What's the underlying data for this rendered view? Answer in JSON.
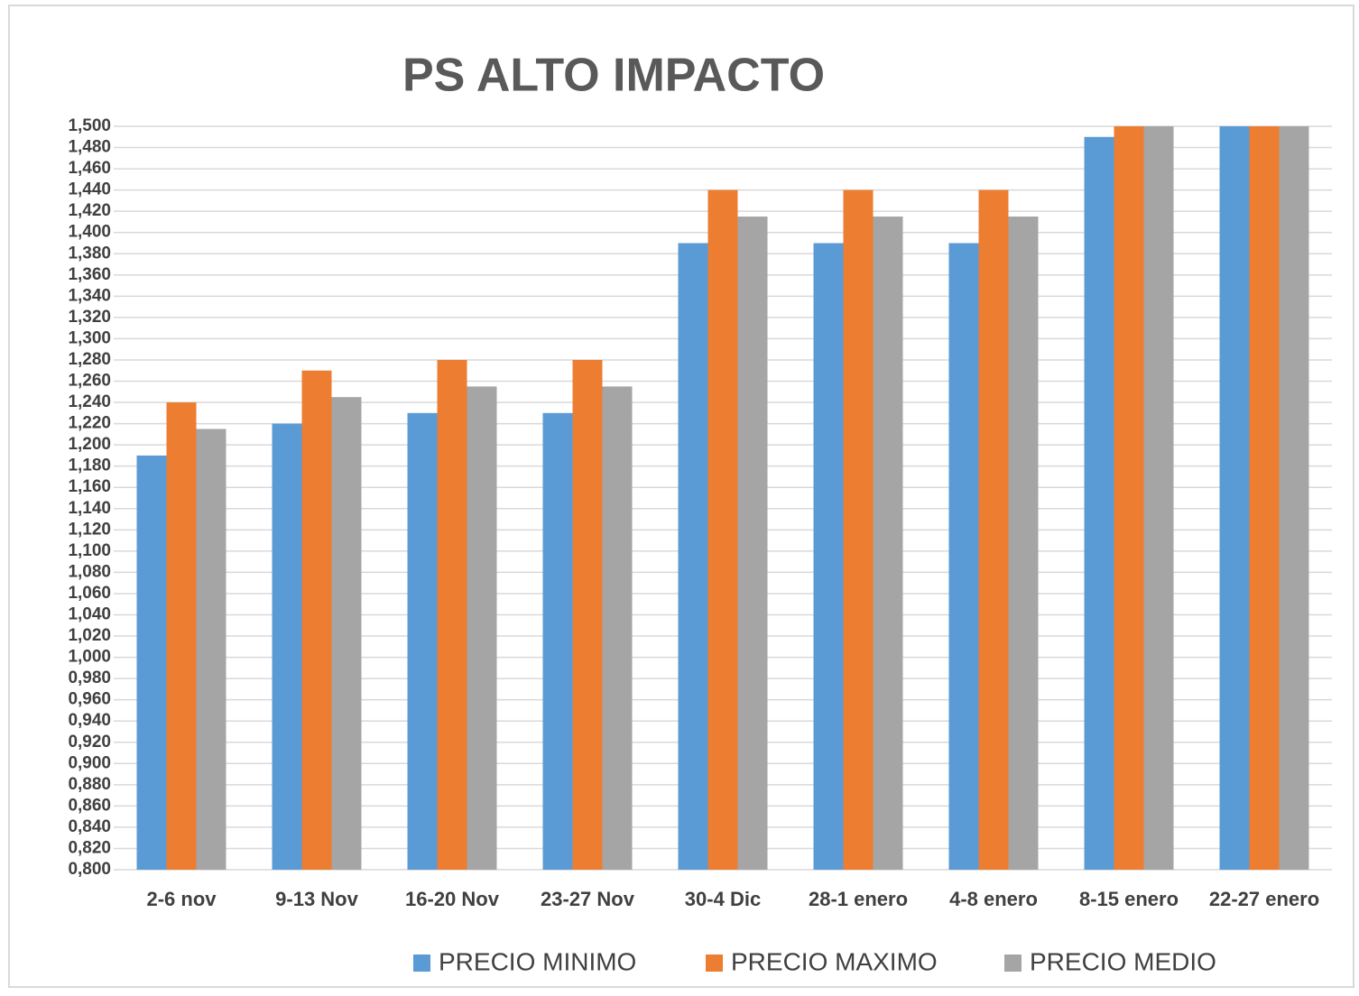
{
  "chart_data": {
    "type": "bar",
    "title": "PS ALTO IMPACTO",
    "categories": [
      "2-6 nov",
      "9-13 Nov",
      "16-20 Nov",
      "23-27 Nov",
      "30-4 Dic",
      "28-1 enero",
      "4-8 enero",
      "8-15 enero",
      "22-27 enero"
    ],
    "series": [
      {
        "name": "PRECIO MINIMO",
        "color": "#5b9bd5",
        "values": [
          1.19,
          1.22,
          1.23,
          1.23,
          1.39,
          1.39,
          1.39,
          1.49,
          1.5
        ]
      },
      {
        "name": "PRECIO MAXIMO",
        "color": "#ed7d31",
        "values": [
          1.24,
          1.27,
          1.28,
          1.28,
          1.44,
          1.44,
          1.44,
          1.5,
          1.5
        ]
      },
      {
        "name": "PRECIO MEDIO",
        "color": "#a5a5a5",
        "values": [
          1.215,
          1.245,
          1.255,
          1.255,
          1.415,
          1.415,
          1.415,
          1.5,
          1.5
        ]
      }
    ],
    "ylim": [
      0.8,
      1.5
    ],
    "yticks": [
      {
        "value": 0.8,
        "label": "0,800"
      },
      {
        "value": 0.82,
        "label": "0,820"
      },
      {
        "value": 0.84,
        "label": "0,840"
      },
      {
        "value": 0.86,
        "label": "0,860"
      },
      {
        "value": 0.88,
        "label": "0,880"
      },
      {
        "value": 0.9,
        "label": "0,900"
      },
      {
        "value": 0.92,
        "label": "0,920"
      },
      {
        "value": 0.94,
        "label": "0,940"
      },
      {
        "value": 0.96,
        "label": "0,960"
      },
      {
        "value": 0.98,
        "label": "0,980"
      },
      {
        "value": 1.0,
        "label": "1,000"
      },
      {
        "value": 1.02,
        "label": "1,020"
      },
      {
        "value": 1.04,
        "label": "1,040"
      },
      {
        "value": 1.06,
        "label": "1,060"
      },
      {
        "value": 1.08,
        "label": "1,080"
      },
      {
        "value": 1.1,
        "label": "1,100"
      },
      {
        "value": 1.12,
        "label": "1,120"
      },
      {
        "value": 1.14,
        "label": "1,140"
      },
      {
        "value": 1.16,
        "label": "1,160"
      },
      {
        "value": 1.18,
        "label": "1,180"
      },
      {
        "value": 1.2,
        "label": "1,200"
      },
      {
        "value": 1.22,
        "label": "1,220"
      },
      {
        "value": 1.24,
        "label": "1,240"
      },
      {
        "value": 1.26,
        "label": "1,260"
      },
      {
        "value": 1.28,
        "label": "1,280"
      },
      {
        "value": 1.3,
        "label": "1,300"
      },
      {
        "value": 1.32,
        "label": "1,320"
      },
      {
        "value": 1.34,
        "label": "1,340"
      },
      {
        "value": 1.36,
        "label": "1,360"
      },
      {
        "value": 1.38,
        "label": "1,380"
      },
      {
        "value": 1.4,
        "label": "1,400"
      },
      {
        "value": 1.42,
        "label": "1,420"
      },
      {
        "value": 1.44,
        "label": "1,440"
      },
      {
        "value": 1.46,
        "label": "1,460"
      },
      {
        "value": 1.48,
        "label": "1,480"
      },
      {
        "value": 1.5,
        "label": "1,500"
      }
    ],
    "grid": true
  }
}
